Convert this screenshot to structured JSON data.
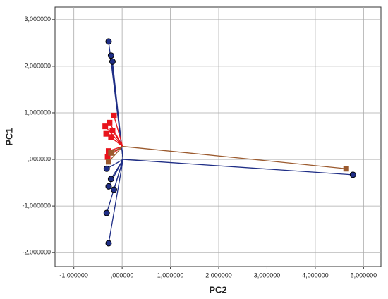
{
  "chart_data": {
    "type": "scatter",
    "x_label": "PC2",
    "y_label": "PC1",
    "xlim": [
      -1.39,
      5.36
    ],
    "ylim": [
      -2.3,
      3.27
    ],
    "xticks": [
      {
        "value": -1,
        "label": "-1,000000"
      },
      {
        "value": 0,
        "label": ",000000"
      },
      {
        "value": 1,
        "label": "1,000000"
      },
      {
        "value": 2,
        "label": "2,000000"
      },
      {
        "value": 3,
        "label": "3,000000"
      },
      {
        "value": 4,
        "label": "4,000000"
      },
      {
        "value": 5,
        "label": "5,000000"
      }
    ],
    "yticks": [
      {
        "value": -2,
        "label": "-2,000000"
      },
      {
        "value": -1,
        "label": "-1,000000"
      },
      {
        "value": 0,
        "label": ",000000"
      },
      {
        "value": 1,
        "label": "1,000000"
      },
      {
        "value": 2,
        "label": "2,000000"
      },
      {
        "value": 3,
        "label": "3,000000"
      }
    ],
    "grid": true,
    "series": [
      {
        "color": "#1f2e86",
        "marker": "circle",
        "center": [
          0.02,
          0.0
        ],
        "x": [
          -0.28,
          -0.23,
          -0.2,
          -0.32,
          -0.28,
          4.78,
          -0.28,
          -0.17,
          -0.32,
          -0.23
        ],
        "y": [
          2.53,
          2.23,
          2.1,
          -1.15,
          -1.8,
          -0.33,
          -0.58,
          -0.65,
          -0.2,
          -0.42
        ]
      },
      {
        "color": "#e8141c",
        "marker": "square",
        "center": [
          0.01,
          0.28
        ],
        "x": [
          -0.35,
          -0.26,
          -0.17,
          -0.23,
          -0.28,
          -0.33,
          -0.2,
          -0.3
        ],
        "y": [
          0.71,
          0.79,
          0.94,
          0.48,
          0.18,
          0.55,
          0.62,
          0.05
        ]
      },
      {
        "color": "#9b5a2e",
        "marker": "square",
        "center": [
          0.01,
          0.28
        ],
        "x": [
          4.64,
          -0.28,
          -0.23
        ],
        "y": [
          -0.2,
          -0.05,
          0.14
        ]
      }
    ]
  }
}
